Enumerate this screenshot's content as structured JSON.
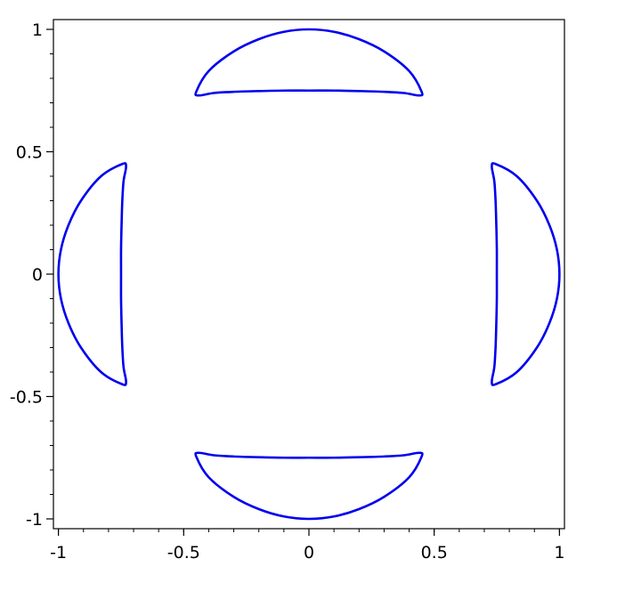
{
  "chart_data": {
    "type": "line",
    "title": "",
    "xlabel": "",
    "ylabel": "",
    "xlim": [
      -1.02,
      1.02
    ],
    "ylim": [
      -1.04,
      1.04
    ],
    "grid": false,
    "legend": "none",
    "line_color": "#0000ee",
    "x_ticks": [
      {
        "value": -1,
        "label": "-1"
      },
      {
        "value": -0.5,
        "label": "-0.5"
      },
      {
        "value": 0,
        "label": "0"
      },
      {
        "value": 0.5,
        "label": "0.5"
      },
      {
        "value": 1,
        "label": "1"
      }
    ],
    "y_ticks": [
      {
        "value": 1,
        "label": "1"
      },
      {
        "value": 0.5,
        "label": "0.5"
      },
      {
        "value": 0,
        "label": "0"
      },
      {
        "value": -0.5,
        "label": "-0.5"
      },
      {
        "value": -1,
        "label": "-1"
      }
    ],
    "minor_tick_step": 0.1,
    "series": [
      {
        "x": [
          -0.44,
          -0.38,
          -0.3,
          -0.2,
          -0.1,
          0,
          0.1,
          0.2,
          0.3,
          0.38,
          0.44,
          0.45,
          0.4,
          0.3,
          0.2,
          0.1,
          0,
          -0.1,
          -0.2,
          -0.3,
          -0.4,
          -0.45,
          -0.44
        ],
        "y": [
          0.73,
          0.74,
          0.745,
          0.748,
          0.75,
          0.75,
          0.75,
          0.748,
          0.745,
          0.74,
          0.73,
          0.745,
          0.83,
          0.91,
          0.96,
          0.99,
          1.0,
          0.99,
          0.96,
          0.91,
          0.83,
          0.745,
          0.73
        ]
      },
      {
        "x": [
          -0.44,
          -0.38,
          -0.3,
          -0.2,
          -0.1,
          0,
          0.1,
          0.2,
          0.3,
          0.38,
          0.44,
          0.45,
          0.4,
          0.3,
          0.2,
          0.1,
          0,
          -0.1,
          -0.2,
          -0.3,
          -0.4,
          -0.45,
          -0.44
        ],
        "y": [
          -0.73,
          -0.74,
          -0.745,
          -0.748,
          -0.75,
          -0.75,
          -0.75,
          -0.748,
          -0.745,
          -0.74,
          -0.73,
          -0.745,
          -0.83,
          -0.91,
          -0.96,
          -0.99,
          -1.0,
          -0.99,
          -0.96,
          -0.91,
          -0.83,
          -0.745,
          -0.73
        ]
      },
      {
        "x": [
          -0.73,
          -0.74,
          -0.745,
          -0.748,
          -0.75,
          -0.75,
          -0.75,
          -0.748,
          -0.745,
          -0.74,
          -0.73,
          -0.745,
          -0.83,
          -0.91,
          -0.96,
          -0.99,
          -1.0,
          -0.99,
          -0.96,
          -0.91,
          -0.83,
          -0.745,
          -0.73
        ],
        "y": [
          0.44,
          0.38,
          0.3,
          0.2,
          0.1,
          0,
          -0.1,
          -0.2,
          -0.3,
          -0.38,
          -0.44,
          -0.45,
          -0.4,
          -0.3,
          -0.2,
          -0.1,
          0,
          0.1,
          0.2,
          0.3,
          0.4,
          0.45,
          0.44
        ]
      },
      {
        "x": [
          0.73,
          0.74,
          0.745,
          0.748,
          0.75,
          0.75,
          0.75,
          0.748,
          0.745,
          0.74,
          0.73,
          0.745,
          0.83,
          0.91,
          0.96,
          0.99,
          1.0,
          0.99,
          0.96,
          0.91,
          0.83,
          0.745,
          0.73
        ],
        "y": [
          0.44,
          0.38,
          0.3,
          0.2,
          0.1,
          0,
          -0.1,
          -0.2,
          -0.3,
          -0.38,
          -0.44,
          -0.45,
          -0.4,
          -0.3,
          -0.2,
          -0.1,
          0,
          0.1,
          0.2,
          0.3,
          0.4,
          0.45,
          0.44
        ]
      }
    ]
  }
}
